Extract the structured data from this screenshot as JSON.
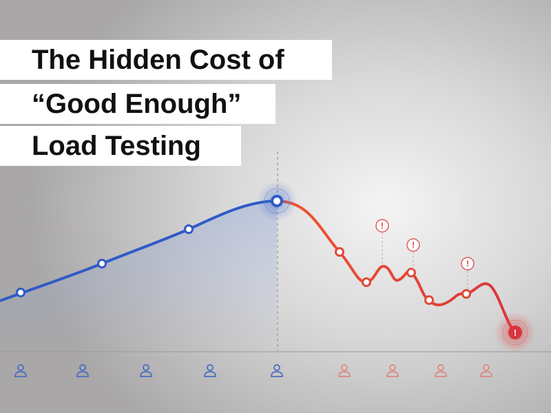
{
  "title": {
    "lines": [
      "The Hidden Cost of",
      "“Good Enough”",
      "Load Testing"
    ]
  }
}
